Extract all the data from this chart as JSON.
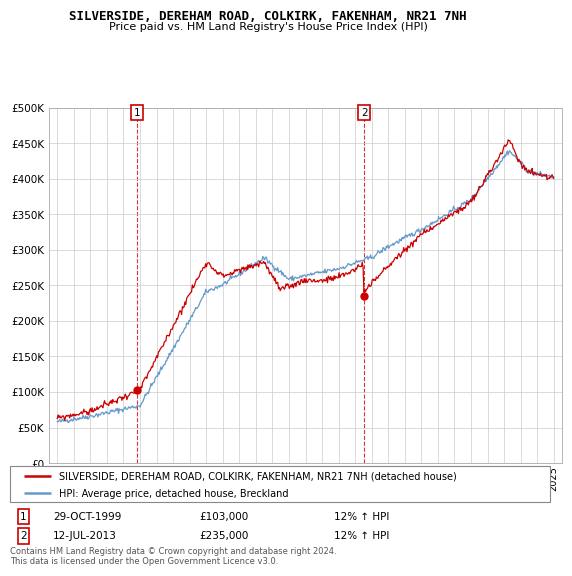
{
  "title": "SILVERSIDE, DEREHAM ROAD, COLKIRK, FAKENHAM, NR21 7NH",
  "subtitle": "Price paid vs. HM Land Registry's House Price Index (HPI)",
  "legend_line1": "SILVERSIDE, DEREHAM ROAD, COLKIRK, FAKENHAM, NR21 7NH (detached house)",
  "legend_line2": "HPI: Average price, detached house, Breckland",
  "annotation1_date": "29-OCT-1999",
  "annotation1_price": "£103,000",
  "annotation1_hpi": "12% ↑ HPI",
  "annotation2_date": "12-JUL-2013",
  "annotation2_price": "£235,000",
  "annotation2_hpi": "12% ↑ HPI",
  "footer": "Contains HM Land Registry data © Crown copyright and database right 2024.\nThis data is licensed under the Open Government Licence v3.0.",
  "house_color": "#cc0000",
  "hpi_color": "#6699cc",
  "vline_color": "#cc0000",
  "ylim": [
    0,
    500000
  ],
  "xlim_start": 1994.5,
  "xlim_end": 2025.5,
  "t1_x": 1999.83,
  "t1_y": 103000,
  "t2_x": 2013.54,
  "t2_y": 235000
}
